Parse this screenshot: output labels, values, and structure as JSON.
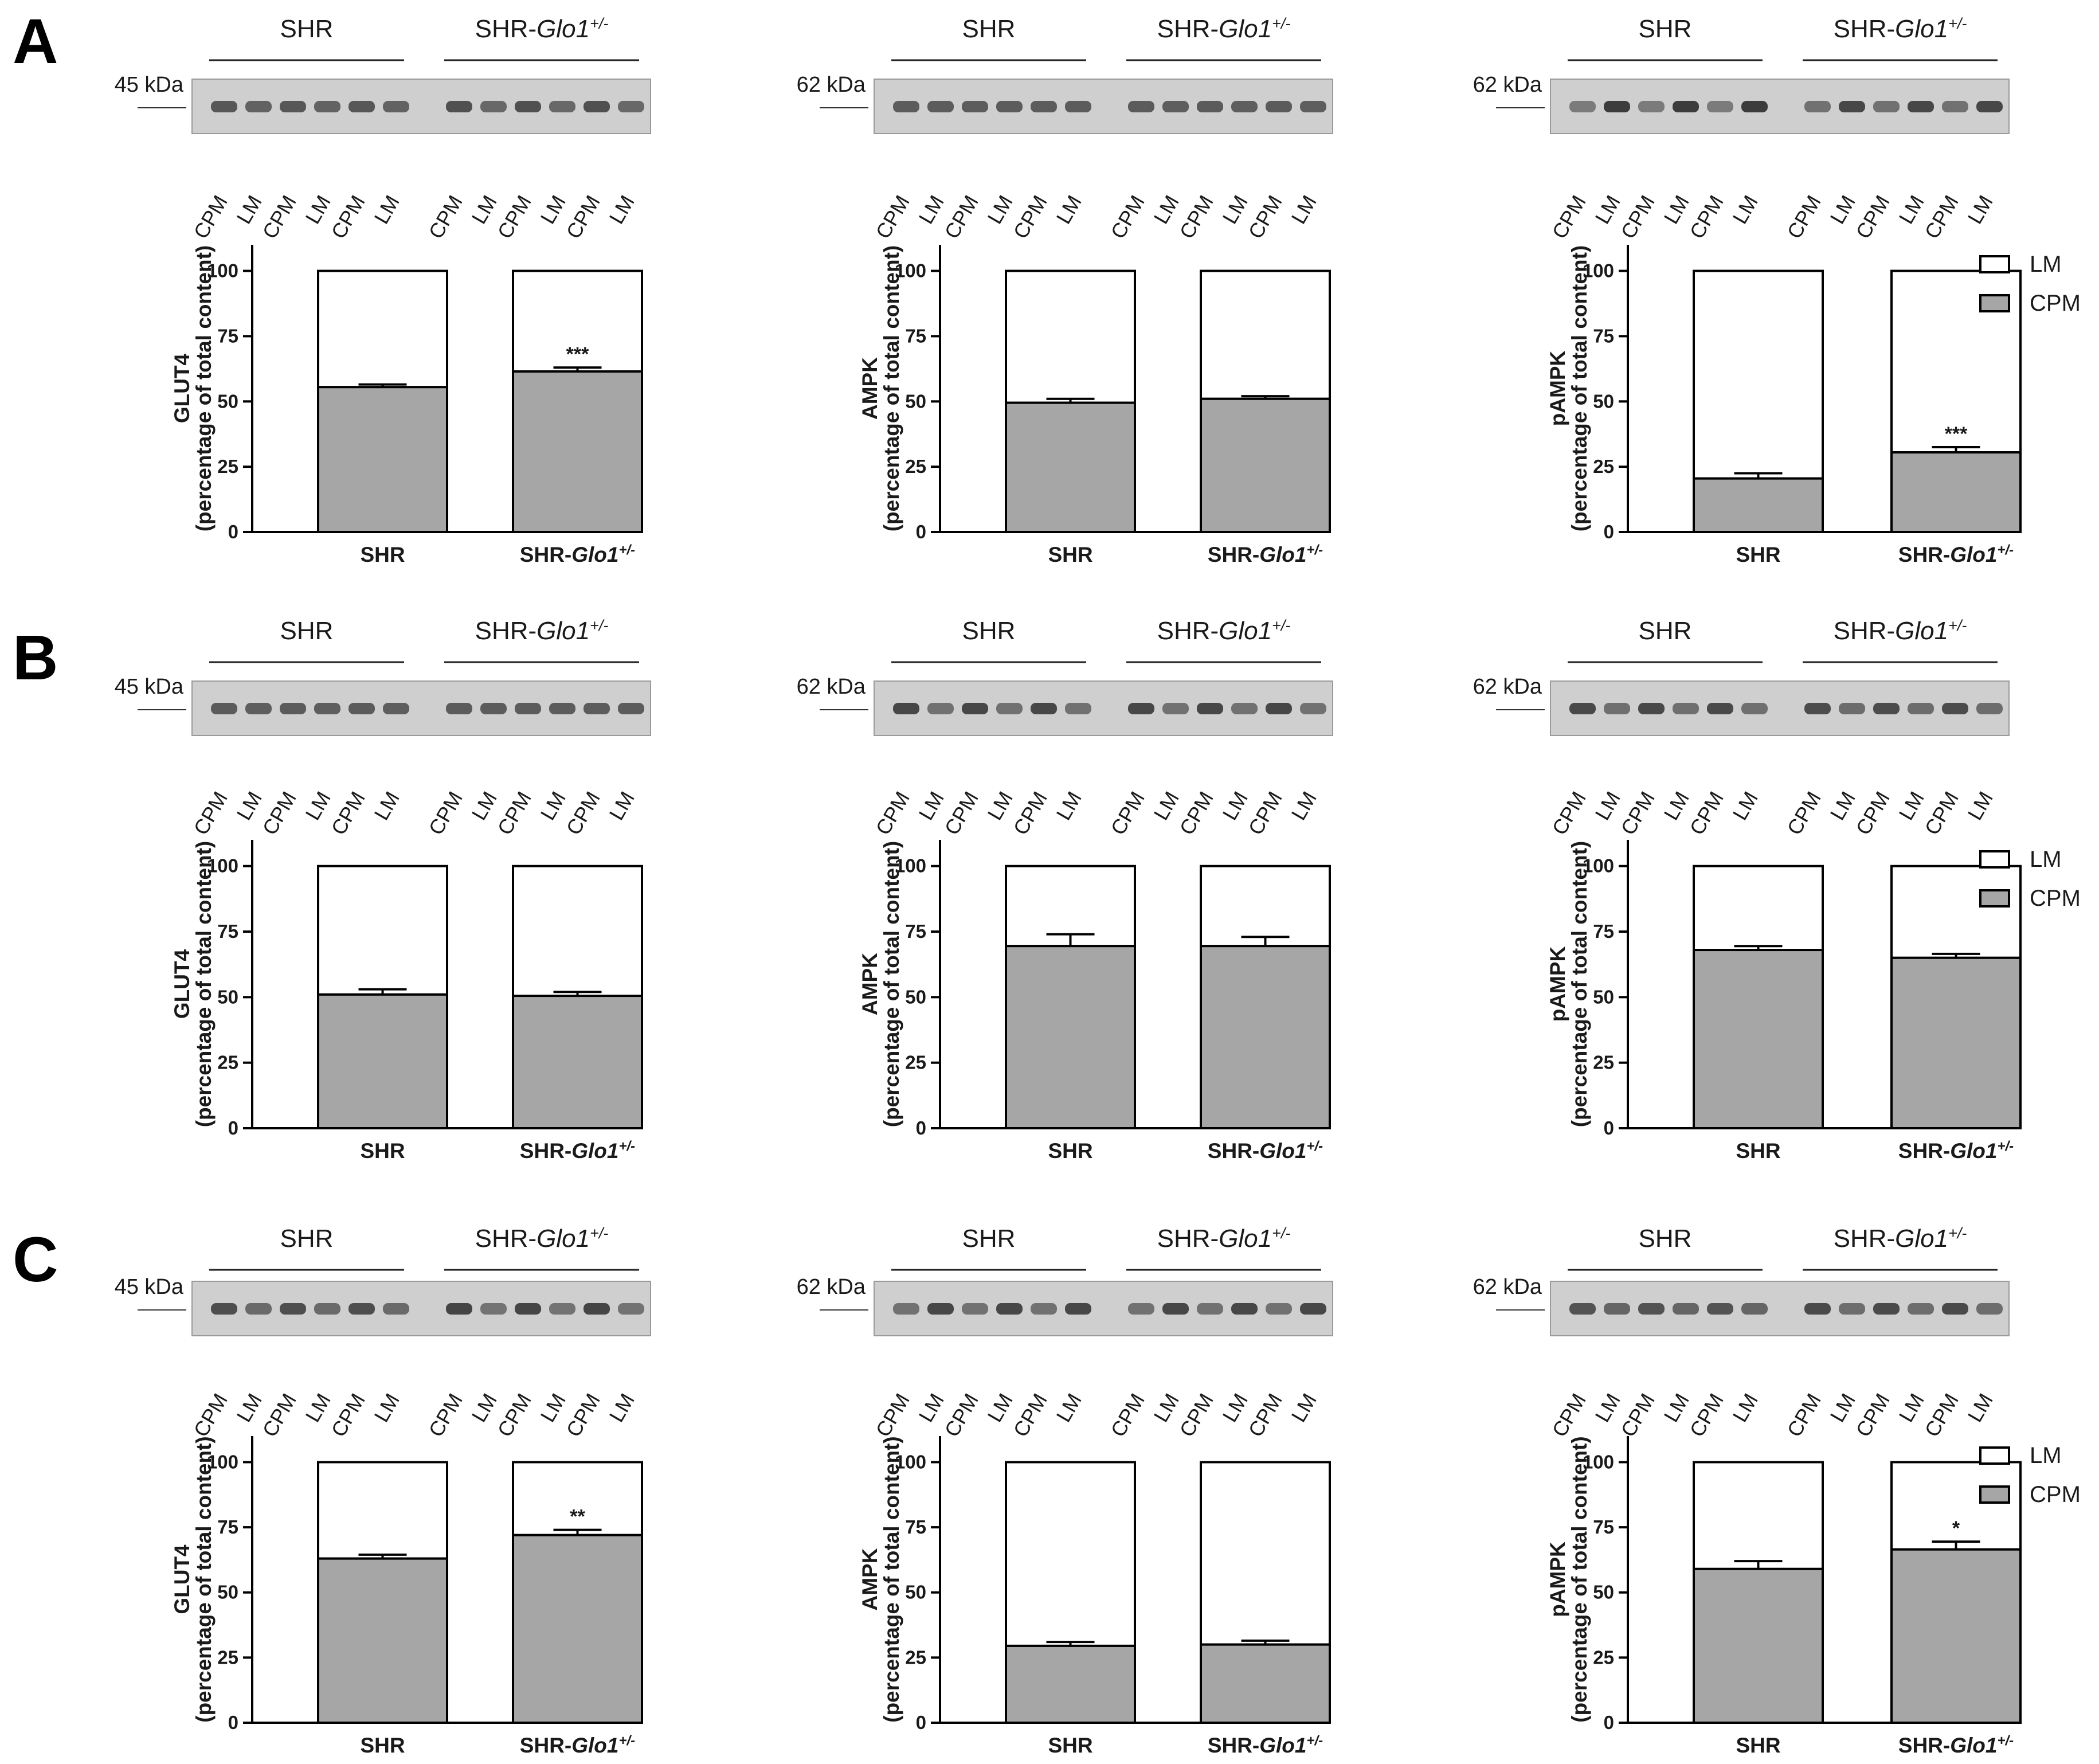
{
  "panel_letters": [
    "A",
    "B",
    "C"
  ],
  "blot": {
    "groups": [
      "SHR",
      "SHR-"
    ],
    "group_italic": "Glo1",
    "group_sup": "+/-",
    "lanes": [
      "CPM",
      "LM",
      "CPM",
      "LM",
      "CPM",
      "LM"
    ]
  },
  "legend": [
    {
      "label": "LM",
      "color": "#ffffff"
    },
    {
      "label": "CPM",
      "color": "#a6a6a6"
    }
  ],
  "colors": {
    "cpm": "#a6a6a6",
    "lm": "#ffffff",
    "stroke": "#000000"
  },
  "chart_data": [
    {
      "panel": "A",
      "type": "bar",
      "stacked": true,
      "protein": "GLUT4",
      "kda": "45 kDa",
      "ylabel": "GLUT4",
      "ylabel2": "(percentage of total content)",
      "categories": [
        "SHR",
        "SHR-Glo1+/-"
      ],
      "series": [
        {
          "name": "CPM",
          "values": [
            55.5,
            61.5
          ],
          "errors": [
            1.0,
            1.5
          ]
        },
        {
          "name": "LM",
          "values": [
            44.5,
            38.5
          ]
        }
      ],
      "significance": [
        "",
        "***"
      ],
      "ylim": [
        0,
        110
      ],
      "yticks": [
        0,
        25,
        50,
        75,
        100
      ],
      "legend": false
    },
    {
      "panel": "A",
      "type": "bar",
      "stacked": true,
      "protein": "AMPK",
      "kda": "62 kDa",
      "ylabel": "AMPK",
      "ylabel2": "(percentage of total content)",
      "categories": [
        "SHR",
        "SHR-Glo1+/-"
      ],
      "series": [
        {
          "name": "CPM",
          "values": [
            49.5,
            51.0
          ],
          "errors": [
            1.5,
            1.0
          ]
        },
        {
          "name": "LM",
          "values": [
            50.5,
            49.0
          ]
        }
      ],
      "significance": [
        "",
        ""
      ],
      "ylim": [
        0,
        110
      ],
      "yticks": [
        0,
        25,
        50,
        75,
        100
      ],
      "legend": false
    },
    {
      "panel": "A",
      "type": "bar",
      "stacked": true,
      "protein": "pAMPK",
      "kda": "62 kDa",
      "ylabel": "pAMPK",
      "ylabel2": "(percentage of total content)",
      "categories": [
        "SHR",
        "SHR-Glo1+/-"
      ],
      "series": [
        {
          "name": "CPM",
          "values": [
            20.5,
            30.5
          ],
          "errors": [
            2.0,
            2.0
          ]
        },
        {
          "name": "LM",
          "values": [
            79.5,
            69.5
          ]
        }
      ],
      "significance": [
        "",
        "***"
      ],
      "ylim": [
        0,
        110
      ],
      "yticks": [
        0,
        25,
        50,
        75,
        100
      ],
      "legend": true
    },
    {
      "panel": "B",
      "type": "bar",
      "stacked": true,
      "protein": "GLUT4",
      "kda": "45 kDa",
      "ylabel": "GLUT4",
      "ylabel2": "(percentage of total content)",
      "categories": [
        "SHR",
        "SHR-Glo1+/-"
      ],
      "series": [
        {
          "name": "CPM",
          "values": [
            51.0,
            50.5
          ],
          "errors": [
            2.0,
            1.5
          ]
        },
        {
          "name": "LM",
          "values": [
            49.0,
            49.5
          ]
        }
      ],
      "significance": [
        "",
        ""
      ],
      "ylim": [
        0,
        110
      ],
      "yticks": [
        0,
        25,
        50,
        75,
        100
      ],
      "legend": false
    },
    {
      "panel": "B",
      "type": "bar",
      "stacked": true,
      "protein": "AMPK",
      "kda": "62 kDa",
      "ylabel": "AMPK",
      "ylabel2": "(percentage of total content)",
      "categories": [
        "SHR",
        "SHR-Glo1+/-"
      ],
      "series": [
        {
          "name": "CPM",
          "values": [
            69.5,
            69.5
          ],
          "errors": [
            4.5,
            3.5
          ]
        },
        {
          "name": "LM",
          "values": [
            30.5,
            30.5
          ]
        }
      ],
      "significance": [
        "",
        ""
      ],
      "ylim": [
        0,
        110
      ],
      "yticks": [
        0,
        25,
        50,
        75,
        100
      ],
      "legend": false
    },
    {
      "panel": "B",
      "type": "bar",
      "stacked": true,
      "protein": "pAMPK",
      "kda": "62 kDa",
      "ylabel": "pAMPK",
      "ylabel2": "(percentage of total content)",
      "categories": [
        "SHR",
        "SHR-Glo1+/-"
      ],
      "series": [
        {
          "name": "CPM",
          "values": [
            68.0,
            65.0
          ],
          "errors": [
            1.5,
            1.5
          ]
        },
        {
          "name": "LM",
          "values": [
            32.0,
            35.0
          ]
        }
      ],
      "significance": [
        "",
        ""
      ],
      "ylim": [
        0,
        110
      ],
      "yticks": [
        0,
        25,
        50,
        75,
        100
      ],
      "legend": true
    },
    {
      "panel": "C",
      "type": "bar",
      "stacked": true,
      "protein": "GLUT4",
      "kda": "45 kDa",
      "ylabel": "GLUT4",
      "ylabel2": "(percentage of total content)",
      "categories": [
        "SHR",
        "SHR-Glo1+/-"
      ],
      "series": [
        {
          "name": "CPM",
          "values": [
            63.0,
            72.0
          ],
          "errors": [
            1.5,
            2.0
          ]
        },
        {
          "name": "LM",
          "values": [
            37.0,
            28.0
          ]
        }
      ],
      "significance": [
        "",
        "**"
      ],
      "ylim": [
        0,
        110
      ],
      "yticks": [
        0,
        25,
        50,
        75,
        100
      ],
      "legend": false
    },
    {
      "panel": "C",
      "type": "bar",
      "stacked": true,
      "protein": "AMPK",
      "kda": "62 kDa",
      "ylabel": "AMPK",
      "ylabel2": "(percentage of total content)",
      "categories": [
        "SHR",
        "SHR-Glo1+/-"
      ],
      "series": [
        {
          "name": "CPM",
          "values": [
            29.5,
            30.0
          ],
          "errors": [
            1.5,
            1.5
          ]
        },
        {
          "name": "LM",
          "values": [
            70.5,
            70.0
          ]
        }
      ],
      "significance": [
        "",
        ""
      ],
      "ylim": [
        0,
        110
      ],
      "yticks": [
        0,
        25,
        50,
        75,
        100
      ],
      "legend": false
    },
    {
      "panel": "C",
      "type": "bar",
      "stacked": true,
      "protein": "pAMPK",
      "kda": "62 kDa",
      "ylabel": "pAMPK",
      "ylabel2": "(percentage of total content)",
      "categories": [
        "SHR",
        "SHR-Glo1+/-"
      ],
      "series": [
        {
          "name": "CPM",
          "values": [
            59.0,
            66.5
          ],
          "errors": [
            3.0,
            3.0
          ]
        },
        {
          "name": "LM",
          "values": [
            41.0,
            33.5
          ]
        }
      ],
      "significance": [
        "",
        "*"
      ],
      "ylim": [
        0,
        110
      ],
      "yticks": [
        0,
        25,
        50,
        75,
        100
      ],
      "legend": true
    }
  ]
}
